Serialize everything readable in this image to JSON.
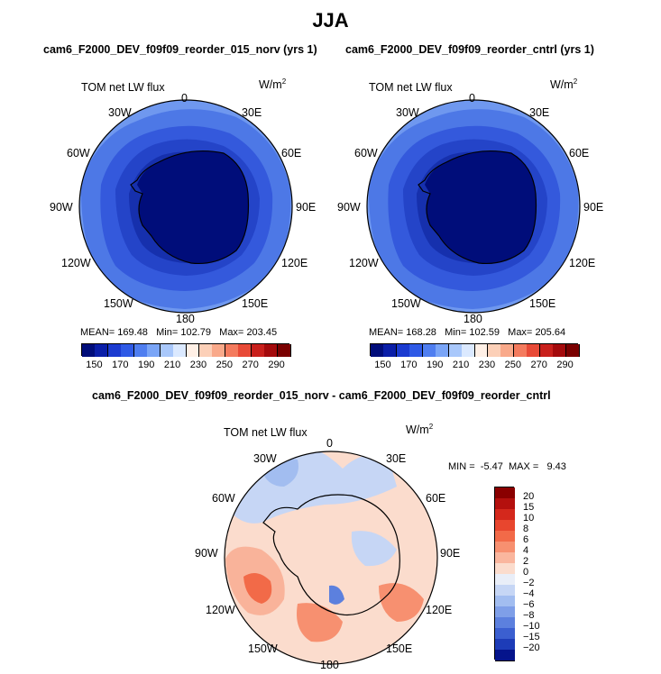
{
  "title": "JJA",
  "panels": [
    {
      "id": "left",
      "subtitle": "cam6_F2000_DEV_f09f09_reorder_015_norv (yrs 1)",
      "variable": "TOM net LW flux",
      "units_base": "W/m",
      "units_exp": "2",
      "longitude_labels": [
        "0",
        "30E",
        "60E",
        "90E",
        "120E",
        "150E",
        "180",
        "150W",
        "120W",
        "90W",
        "60W",
        "30W"
      ],
      "stats": {
        "mean_label": "MEAN=",
        "mean": "169.48",
        "min_label": "Min=",
        "min": "102.79",
        "max_label": "Max=",
        "max": "203.45"
      },
      "colorbar": {
        "ticks": [
          "150",
          "170",
          "190",
          "210",
          "230",
          "250",
          "270",
          "290"
        ],
        "colors": [
          "#000d7a",
          "#0a1ea8",
          "#1b3bd0",
          "#2f5ae6",
          "#4f7ef0",
          "#7aa5f7",
          "#a9c8fb",
          "#dbe9ff",
          "#fff0e6",
          "#fcd0b8",
          "#f9a98a",
          "#f47b5e",
          "#e84a37",
          "#c9201c",
          "#a40a0c",
          "#7a0000"
        ]
      }
    },
    {
      "id": "right",
      "subtitle": "cam6_F2000_DEV_f09f09_reorder_cntrl (yrs 1)",
      "variable": "TOM net LW flux",
      "units_base": "W/m",
      "units_exp": "2",
      "longitude_labels": [
        "0",
        "30E",
        "60E",
        "90E",
        "120E",
        "150E",
        "180",
        "150W",
        "120W",
        "90W",
        "60W",
        "30W"
      ],
      "stats": {
        "mean_label": "MEAN=",
        "mean": "168.28",
        "min_label": "Min=",
        "min": "102.59",
        "max_label": "Max=",
        "max": "205.64"
      },
      "colorbar": {
        "ticks": [
          "150",
          "170",
          "190",
          "210",
          "230",
          "250",
          "270",
          "290"
        ],
        "colors": [
          "#000d7a",
          "#0a1ea8",
          "#1b3bd0",
          "#2f5ae6",
          "#4f7ef0",
          "#7aa5f7",
          "#a9c8fb",
          "#dbe9ff",
          "#fff0e6",
          "#fcd0b8",
          "#f9a98a",
          "#f47b5e",
          "#e84a37",
          "#c9201c",
          "#a40a0c",
          "#7a0000"
        ]
      }
    },
    {
      "id": "diff",
      "subtitle": "cam6_F2000_DEV_f09f09_reorder_015_norv - cam6_F2000_DEV_f09f09_reorder_cntrl",
      "variable": "TOM net LW flux",
      "units_base": "W/m",
      "units_exp": "2",
      "longitude_labels": [
        "0",
        "30E",
        "60E",
        "90E",
        "120E",
        "150E",
        "180",
        "150W",
        "120W",
        "90W",
        "60W",
        "30W"
      ],
      "stats": {
        "min_label": "MIN =",
        "min": "-5.47",
        "max_label": "MAX =",
        "max": "9.43"
      },
      "colorbar": {
        "ticks": [
          "20",
          "15",
          "10",
          "8",
          "6",
          "4",
          "2",
          "0",
          "−2",
          "−4",
          "−6",
          "−8",
          "−10",
          "−15",
          "−20"
        ],
        "colors": [
          "#8a0000",
          "#b4100e",
          "#d4281c",
          "#e8462e",
          "#f26a48",
          "#f79070",
          "#fab69e",
          "#fbdccd",
          "#e9eef8",
          "#c6d6f5",
          "#a2bdf0",
          "#7f9fe8",
          "#5c80de",
          "#3b5fd0",
          "#1d3cb8",
          "#05148c"
        ]
      }
    }
  ]
}
